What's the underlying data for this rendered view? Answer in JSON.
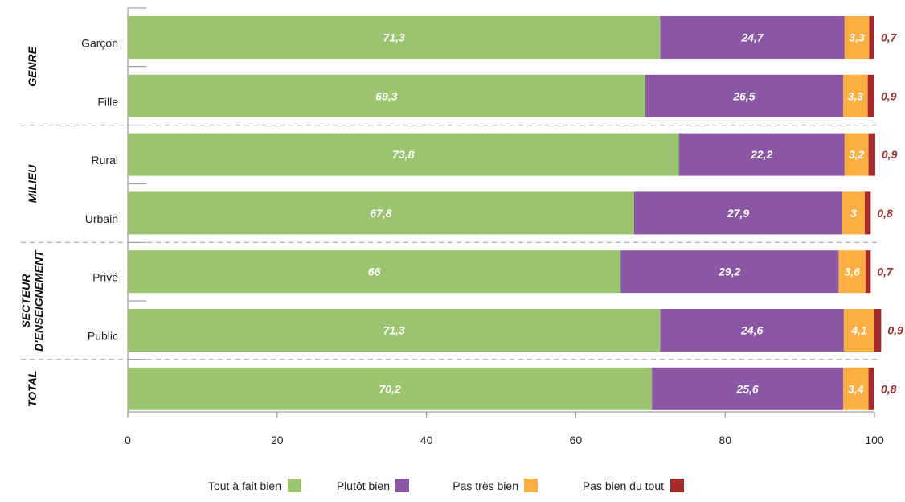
{
  "chart_data": {
    "type": "bar",
    "orientation": "horizontal",
    "stacked": true,
    "xlim": [
      0,
      100
    ],
    "x_ticks": [
      "0",
      "20",
      "40",
      "60",
      "80",
      "100"
    ],
    "categories": [
      "Garçon",
      "Fille",
      "Rural",
      "Urbain",
      "Privé",
      "Public",
      ""
    ],
    "groups": [
      {
        "label": "GENRE",
        "lines": [
          "GENRE"
        ],
        "categories": [
          "Garçon",
          "Fille"
        ]
      },
      {
        "label": "MILIEU",
        "lines": [
          "MILIEU"
        ],
        "categories": [
          "Rural",
          "Urbain"
        ]
      },
      {
        "label": "SECTEUR D'ENSEIGNEMENT",
        "lines": [
          "SECTEUR",
          "D'ENSEIGNEMENT"
        ],
        "categories": [
          "Privé",
          "Public"
        ]
      },
      {
        "label": "TOTAL",
        "lines": [
          "TOTAL"
        ],
        "categories": [
          ""
        ]
      }
    ],
    "series": [
      {
        "name": "Tout à fait bien",
        "color": "#9bc46f",
        "values": [
          71.3,
          69.3,
          73.8,
          67.8,
          66,
          71.3,
          70.2
        ],
        "labels": [
          "71,3",
          "69,3",
          "73,8",
          "67,8",
          "66",
          "71,3",
          "70,2"
        ]
      },
      {
        "name": "Plutôt bien",
        "color": "#8b57a5",
        "values": [
          24.7,
          26.5,
          22.2,
          27.9,
          29.2,
          24.6,
          25.6
        ],
        "labels": [
          "24,7",
          "26,5",
          "22,2",
          "27,9",
          "29,2",
          "24,6",
          "25,6"
        ]
      },
      {
        "name": "Pas très bien",
        "color": "#fbae42",
        "values": [
          3.3,
          3.3,
          3.2,
          3,
          3.6,
          4.1,
          3.4
        ],
        "labels": [
          "3,3",
          "3,3",
          "3,2",
          "3",
          "3,6",
          "4,1",
          "3,4"
        ]
      },
      {
        "name": "Pas bien du tout",
        "color": "#a52a2a",
        "values": [
          0.7,
          0.9,
          0.9,
          0.8,
          0.7,
          0.9,
          0.8
        ],
        "labels": [
          "0,7",
          "0,9",
          "0,9",
          "0,8",
          "0,7",
          "0,9",
          "0,8"
        ]
      }
    ],
    "legend_position": "bottom",
    "grid": false
  }
}
